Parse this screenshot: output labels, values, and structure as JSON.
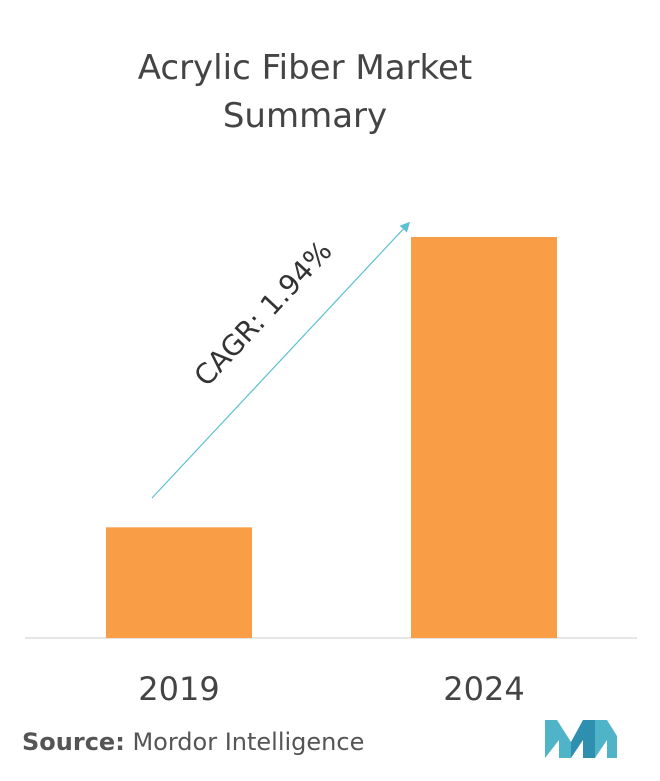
{
  "title_line1": "Acrylic Fiber Market",
  "title_line2": "Summary",
  "source_label": "Source:",
  "source_text": "Mordor Intelligence",
  "colors": {
    "bar": "#F99E47",
    "arrow": "#5BC0CF",
    "axis": "#dddddd",
    "text": "#444444",
    "logo": "#4FB4C8"
  },
  "chart_data": {
    "type": "bar",
    "categories": [
      "2019",
      "2024"
    ],
    "values": [
      27.6,
      100
    ],
    "value_note": "",
    "ylim": [
      0,
      100
    ],
    "annotation": "CAGR: 1.94%",
    "grid": false
  }
}
